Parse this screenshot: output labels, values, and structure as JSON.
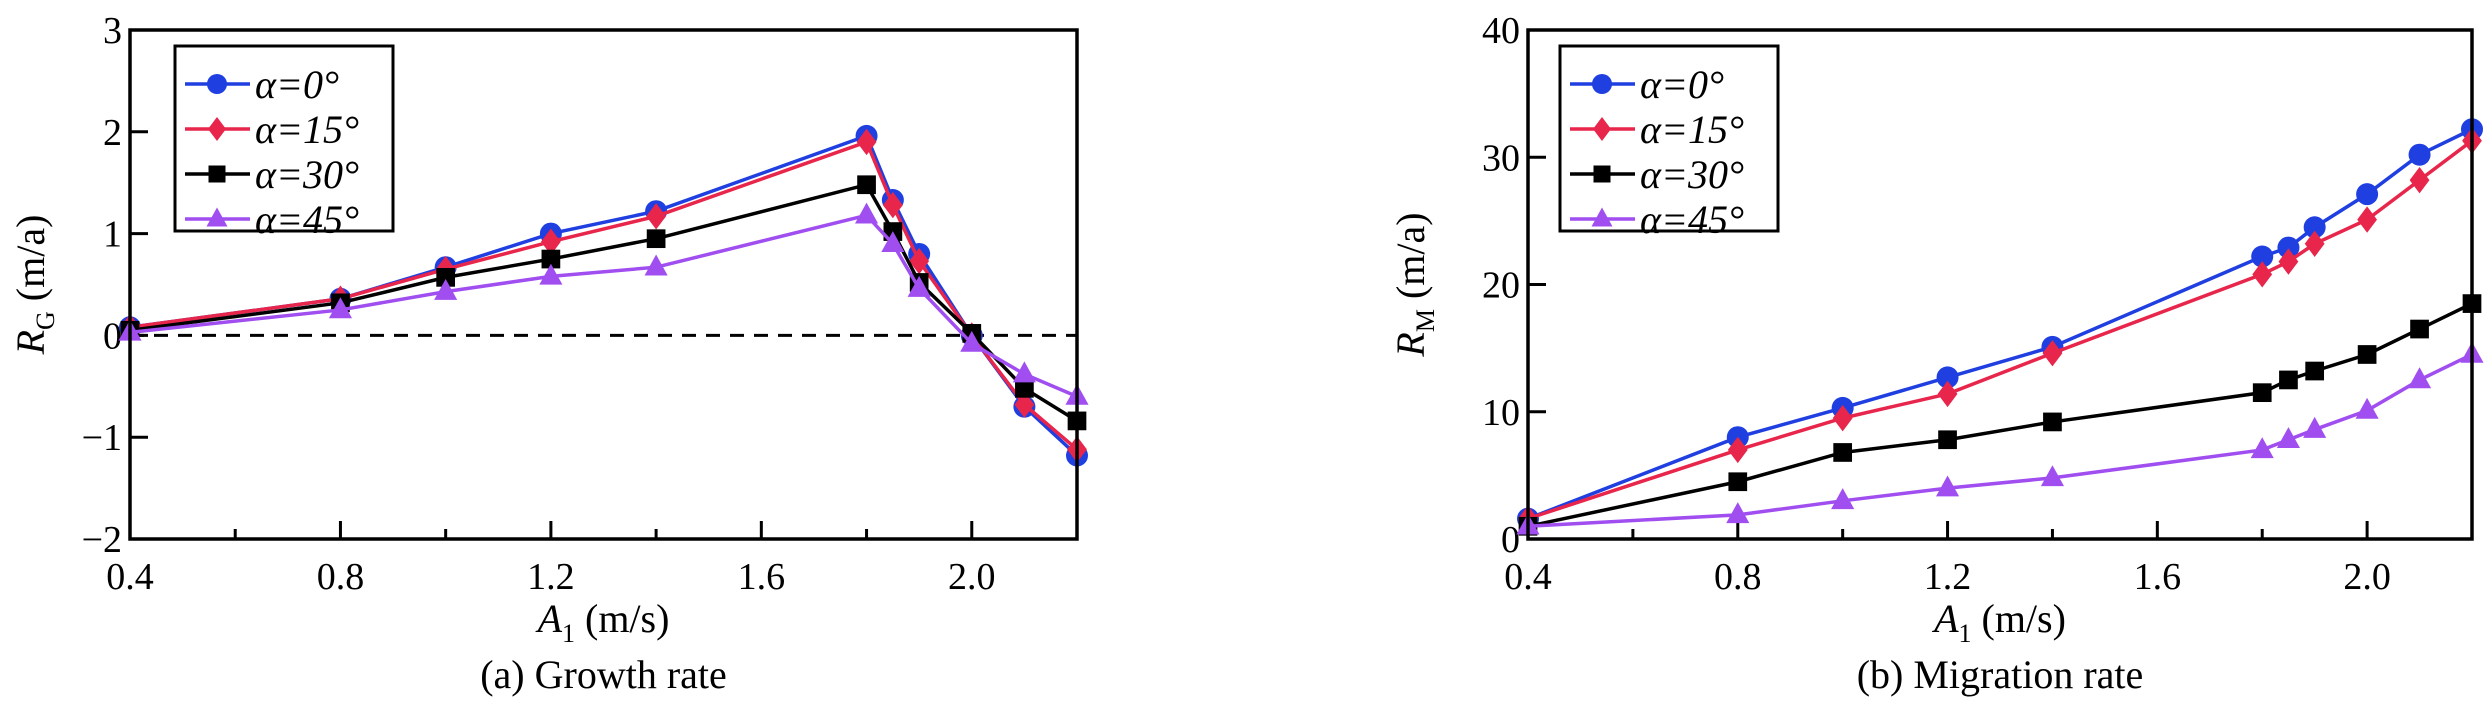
{
  "chart_data": [
    {
      "type": "line",
      "id": "a",
      "title": "(a) Growth rate",
      "xlabel": "A1 (m/s)",
      "xlabel_main": "A",
      "xlabel_sub": "1",
      "xlabel_unit": " (m/s)",
      "ylabel_main": "R",
      "ylabel_sub": "G",
      "ylabel_unit": " (m/a)",
      "xlim": [
        0.4,
        2.2
      ],
      "ylim": [
        -2,
        3
      ],
      "xticks": [
        0.4,
        0.8,
        1.2,
        1.6,
        2.0
      ],
      "xtick_labels": [
        "0.4",
        "0.8",
        "1.2",
        "1.6",
        "2.0"
      ],
      "yticks": [
        -2,
        -1,
        0,
        1,
        2,
        3
      ],
      "ytick_labels": [
        "−2",
        "−1",
        "0",
        "1",
        "2",
        "3"
      ],
      "reference_line": 0,
      "legend_position": "top-left",
      "x": [
        0.4,
        0.8,
        1.0,
        1.2,
        1.4,
        1.8,
        1.85,
        1.9,
        2.0,
        2.1,
        2.2
      ],
      "series": [
        {
          "name": "α=0°",
          "color": "#1f3fe0",
          "marker": "circle",
          "values": [
            0.08,
            0.36,
            0.67,
            1.0,
            1.22,
            1.96,
            1.33,
            0.8,
            0.0,
            -0.7,
            -1.18
          ]
        },
        {
          "name": "α=15°",
          "color": "#e8254a",
          "marker": "diamond",
          "values": [
            0.08,
            0.36,
            0.65,
            0.92,
            1.17,
            1.9,
            1.28,
            0.73,
            0.0,
            -0.68,
            -1.12
          ]
        },
        {
          "name": "α=30°",
          "color": "#000000",
          "marker": "square",
          "values": [
            0.05,
            0.32,
            0.57,
            0.75,
            0.95,
            1.48,
            1.02,
            0.52,
            0.02,
            -0.52,
            -0.84
          ]
        },
        {
          "name": "α=45°",
          "color": "#a04ef0",
          "marker": "triangle",
          "values": [
            0.03,
            0.25,
            0.43,
            0.58,
            0.67,
            1.18,
            0.9,
            0.46,
            -0.08,
            -0.38,
            -0.6
          ]
        }
      ]
    },
    {
      "type": "line",
      "id": "b",
      "title": "(b) Migration rate",
      "xlabel": "A1 (m/s)",
      "xlabel_main": "A",
      "xlabel_sub": "1",
      "xlabel_unit": " (m/s)",
      "ylabel_main": "R",
      "ylabel_sub": "M",
      "ylabel_unit": " (m/a)",
      "xlim": [
        0.4,
        2.2
      ],
      "ylim": [
        0,
        40
      ],
      "xticks": [
        0.4,
        0.8,
        1.2,
        1.6,
        2.0
      ],
      "xtick_labels": [
        "0.4",
        "0.8",
        "1.2",
        "1.6",
        "2.0"
      ],
      "yticks": [
        0,
        10,
        20,
        30,
        40
      ],
      "ytick_labels": [
        "0",
        "10",
        "20",
        "30",
        "40"
      ],
      "legend_position": "top-left",
      "x": [
        0.4,
        0.8,
        1.0,
        1.2,
        1.4,
        1.8,
        1.85,
        1.9,
        2.0,
        2.1,
        2.2
      ],
      "series": [
        {
          "name": "α=0°",
          "color": "#1f3fe0",
          "marker": "circle",
          "values": [
            1.6,
            8.0,
            10.3,
            12.7,
            15.1,
            22.2,
            22.9,
            24.5,
            27.1,
            30.2,
            32.2
          ]
        },
        {
          "name": "α=15°",
          "color": "#e8254a",
          "marker": "diamond",
          "values": [
            1.6,
            7.0,
            9.5,
            11.4,
            14.6,
            20.8,
            21.8,
            23.2,
            25.1,
            28.2,
            31.3
          ]
        },
        {
          "name": "α=30°",
          "color": "#000000",
          "marker": "square",
          "values": [
            1.0,
            4.5,
            6.8,
            7.8,
            9.2,
            11.5,
            12.5,
            13.2,
            14.5,
            16.5,
            18.5
          ]
        },
        {
          "name": "α=45°",
          "color": "#a04ef0",
          "marker": "triangle",
          "values": [
            1.0,
            1.9,
            3.0,
            4.0,
            4.8,
            7.0,
            7.8,
            8.6,
            10.1,
            12.5,
            14.5
          ]
        }
      ]
    }
  ]
}
